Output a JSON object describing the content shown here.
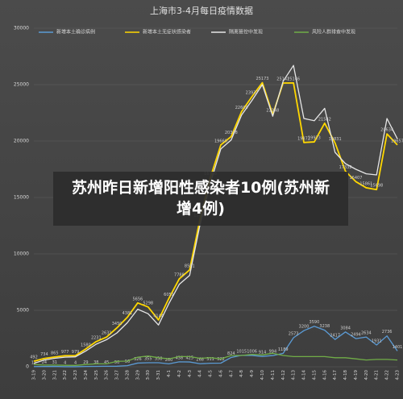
{
  "chart_data": {
    "type": "line",
    "title": "上海市3-4月每日疫情数据",
    "categories": [
      "3-19",
      "3-20",
      "3-21",
      "3-22",
      "3-23",
      "3-24",
      "3-25",
      "3-26",
      "3-27",
      "3-28",
      "3-29",
      "3-30",
      "3-31",
      "4-1",
      "4-2",
      "4-3",
      "4-4",
      "4-5",
      "4-6",
      "4-7",
      "4-8",
      "4-9",
      "4-10",
      "4-11",
      "4-12",
      "4-13",
      "4-14",
      "4-15",
      "4-16",
      "4-17",
      "4-18",
      "4-19",
      "4-20",
      "4-21",
      "4-22",
      "4-23"
    ],
    "series": [
      {
        "name": "新增本土确诊病例",
        "color": "#5b9bd5",
        "values": [
          17,
          24,
          31,
          4,
          4,
          29,
          38,
          45,
          50,
          96,
          326,
          355,
          358,
          260,
          438,
          425,
          268,
          311,
          322,
          824,
          1015,
          1006,
          914,
          994,
          1189,
          2573,
          3200,
          3590,
          3238,
          2417,
          3084,
          2494,
          2634,
          1931,
          2736,
          1401
        ]
      },
      {
        "name": "新增本土无症状感染者",
        "color": "#ffd700",
        "values": [
          492,
          734,
          865,
          977,
          979,
          1580,
          2231,
          2631,
          3450,
          4381,
          5656,
          5298,
          4144,
          6051,
          7788,
          8581,
          13086,
          16766,
          19660,
          20398,
          22609,
          23937,
          25173,
          22348,
          25141,
          25146,
          19872,
          19923,
          21582,
          19831,
          17332,
          16407,
          15861,
          15698,
          20634,
          19657
        ]
      },
      {
        "name": "隔离管控中发现",
        "color": "#e6e6e6",
        "values": [
          300,
          600,
          750,
          850,
          880,
          1400,
          2000,
          2400,
          3000,
          3900,
          5100,
          4700,
          3700,
          5600,
          7300,
          8100,
          12600,
          16300,
          19300,
          20100,
          22300,
          23600,
          25000,
          22200,
          25300,
          26700,
          22000,
          21800,
          22900,
          19000,
          18000,
          17500,
          17100,
          17000,
          22000,
          20200
        ]
      },
      {
        "name": "风险人群排查中发现",
        "color": "#70ad47",
        "values": [
          200,
          150,
          150,
          130,
          120,
          200,
          260,
          260,
          480,
          500,
          850,
          950,
          800,
          700,
          900,
          900,
          750,
          800,
          700,
          1000,
          1000,
          1100,
          1050,
          1200,
          1000,
          900,
          900,
          900,
          900,
          800,
          800,
          700,
          600,
          650,
          650,
          600
        ]
      }
    ],
    "ylim": [
      0,
      30000
    ],
    "yticks": [
      0,
      5000,
      10000,
      15000,
      20000,
      25000,
      30000
    ],
    "grid": true,
    "legend": "top",
    "data_labels": true
  },
  "caption": "苏州昨日新增阳性感染者10例(苏州新增4例)"
}
